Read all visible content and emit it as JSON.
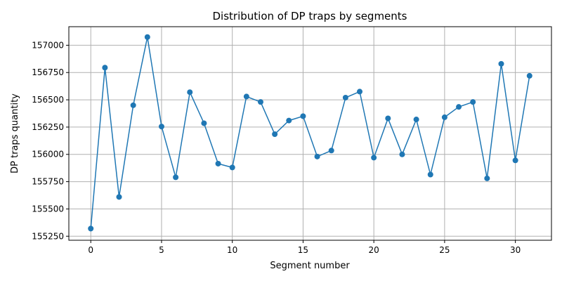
{
  "chart_data": {
    "type": "line",
    "title": "Distribution of DP traps by segments",
    "xlabel": "Segment number",
    "ylabel": "DP traps quantity",
    "xlim": [
      -1.55,
      32.55
    ],
    "ylim": [
      155213,
      157170
    ],
    "xticks": [
      0,
      5,
      10,
      15,
      20,
      25,
      30
    ],
    "xtick_labels": [
      "0",
      "5",
      "10",
      "15",
      "20",
      "25",
      "30"
    ],
    "yticks": [
      155250,
      155500,
      155750,
      156000,
      156250,
      156500,
      156750,
      157000
    ],
    "ytick_labels": [
      "155250",
      "155500",
      "155750",
      "156000",
      "156250",
      "156500",
      "156750",
      "157000"
    ],
    "grid": true,
    "line_color": "#1f77b4",
    "marker": "circle",
    "x": [
      0,
      1,
      2,
      3,
      4,
      5,
      6,
      7,
      8,
      9,
      10,
      11,
      12,
      13,
      14,
      15,
      16,
      17,
      18,
      19,
      20,
      21,
      22,
      23,
      24,
      25,
      26,
      27,
      28,
      29,
      30,
      31
    ],
    "y": [
      155320,
      156795,
      155610,
      156450,
      157075,
      156255,
      155790,
      156570,
      156285,
      155915,
      155880,
      156530,
      156480,
      156185,
      156310,
      156350,
      155980,
      156035,
      156520,
      156575,
      155970,
      156330,
      156000,
      156320,
      155815,
      156340,
      156435,
      156480,
      155780,
      156830,
      155945,
      156720
    ]
  }
}
